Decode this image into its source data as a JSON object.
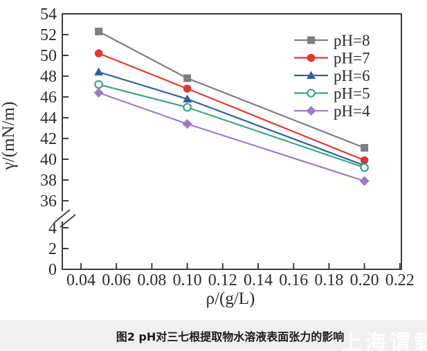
{
  "figure": {
    "caption": "图2  pH对三七根提取物水溶液表面张力的影响",
    "watermark": "上海谓载"
  },
  "chart_data": {
    "type": "line",
    "title": "",
    "xlabel": "ρ/(g/L)",
    "ylabel": "γ/(mN/m)",
    "grid": false,
    "x": [
      0.05,
      0.1,
      0.2
    ],
    "series": [
      {
        "name": "pH=8",
        "color": "#7f7f7f",
        "marker": "square",
        "values": [
          52.3,
          47.8,
          41.1
        ]
      },
      {
        "name": "pH=7",
        "color": "#e0392e",
        "marker": "circle",
        "values": [
          50.2,
          46.8,
          39.9
        ]
      },
      {
        "name": "pH=6",
        "color": "#2e5fa6",
        "marker": "triangle",
        "values": [
          48.4,
          45.8,
          39.4
        ]
      },
      {
        "name": "pH=5",
        "color": "#38a77a",
        "marker": "circle-open",
        "values": [
          47.2,
          45.0,
          39.2
        ]
      },
      {
        "name": "pH=4",
        "color": "#a07ac6",
        "marker": "diamond",
        "values": [
          46.4,
          43.4,
          37.9
        ]
      }
    ],
    "x_axis": {
      "min": 0.04,
      "max": 0.22,
      "tick_step": 0.02,
      "tick_labels": [
        "0.04",
        "0.06",
        "0.08",
        "0.10",
        "0.12",
        "0.14",
        "0.16",
        "0.18",
        "0.20",
        "0.22"
      ]
    },
    "y_axis": {
      "broken": true,
      "upper_segment": {
        "min": 36,
        "max": 54,
        "step": 2,
        "tick_labels": [
          "36",
          "38",
          "40",
          "42",
          "44",
          "46",
          "48",
          "50",
          "52",
          "54"
        ]
      },
      "lower_segment": {
        "min": 0,
        "max": 4,
        "step": 2,
        "tick_labels": [
          "0",
          "2",
          "4"
        ]
      }
    },
    "legend": {
      "position": "top-right",
      "entries": [
        "pH=8",
        "pH=7",
        "pH=6",
        "pH=5",
        "pH=4"
      ]
    },
    "axis_color": "#3d3d3d",
    "text_color": "#2b2b2b"
  }
}
